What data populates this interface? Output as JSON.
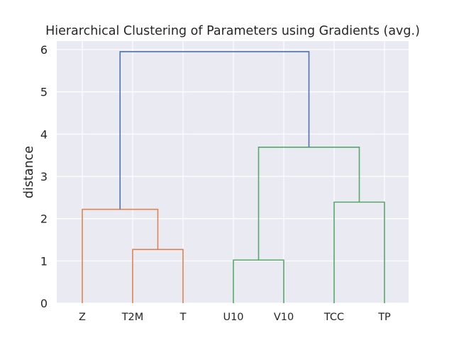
{
  "chart_data": {
    "type": "dendrogram",
    "title": "Hierarchical Clustering of Parameters using Gradients (avg.)",
    "xlabel": "",
    "ylabel": "distance",
    "ylim": [
      0,
      6.2
    ],
    "yticks": [
      0,
      1,
      2,
      3,
      4,
      5,
      6
    ],
    "grid": true,
    "leaves": [
      "Z",
      "T2M",
      "T",
      "U10",
      "V10",
      "TCC",
      "TP"
    ],
    "links": [
      {
        "left": [
          "T2M"
        ],
        "right": [
          "T"
        ],
        "distance": 1.27,
        "color": "#dd8452"
      },
      {
        "left": [
          "U10"
        ],
        "right": [
          "V10"
        ],
        "distance": 1.02,
        "color": "#55a868"
      },
      {
        "left": [
          "TCC"
        ],
        "right": [
          "TP"
        ],
        "distance": 2.39,
        "color": "#55a868"
      },
      {
        "left": [
          "Z"
        ],
        "right": [
          "T2M",
          "T"
        ],
        "distance": 2.22,
        "color": "#dd8452"
      },
      {
        "left": [
          "U10",
          "V10"
        ],
        "right": [
          "TCC",
          "TP"
        ],
        "distance": 3.69,
        "color": "#55a868"
      },
      {
        "left": [
          "Z",
          "T2M",
          "T"
        ],
        "right": [
          "U10",
          "V10",
          "TCC",
          "TP"
        ],
        "distance": 5.95,
        "color": "#4c72b0"
      }
    ]
  }
}
